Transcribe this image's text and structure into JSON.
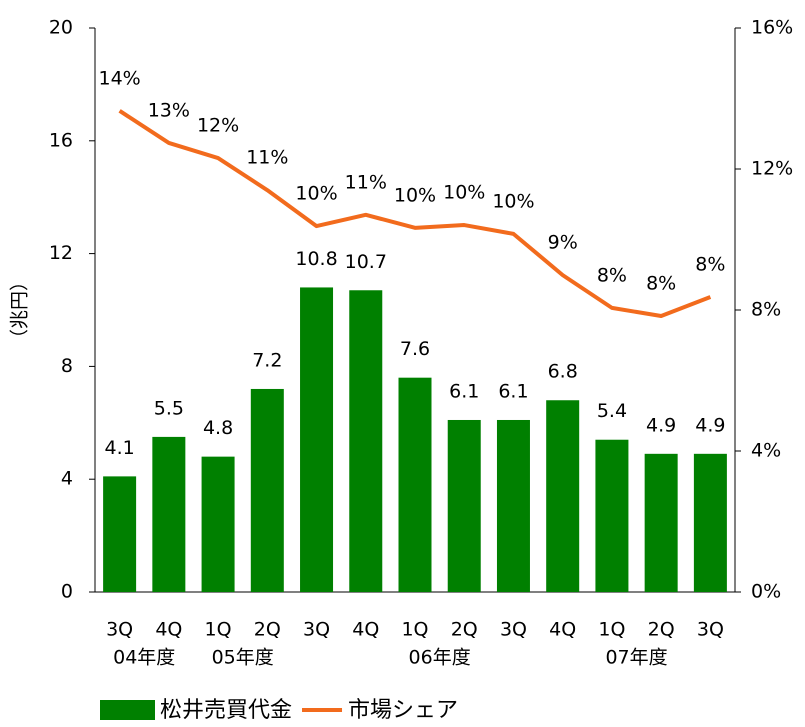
{
  "chart_data": {
    "type": "bar-line",
    "y_label": "（兆円）",
    "categories": [
      "3Q",
      "4Q",
      "1Q",
      "2Q",
      "3Q",
      "4Q",
      "1Q",
      "2Q",
      "3Q",
      "4Q",
      "1Q",
      "2Q",
      "3Q"
    ],
    "category_groups": [
      {
        "label": "04年度",
        "first": 0,
        "last": 1
      },
      {
        "label": "05年度",
        "first": 2,
        "last": 3
      },
      {
        "label": "06年度",
        "first": 6,
        "last": 7
      },
      {
        "label": "07年度",
        "first": 10,
        "last": 11
      }
    ],
    "series": [
      {
        "name": "松井売買代金",
        "type": "bar",
        "color": "#008000",
        "values": [
          4.1,
          5.5,
          4.8,
          7.2,
          10.8,
          10.7,
          7.6,
          6.1,
          6.1,
          6.8,
          5.4,
          4.9,
          4.9
        ]
      },
      {
        "name": "市場シェア",
        "type": "line",
        "axis": "y2",
        "color": "#f26b1d",
        "values": [
          13.65,
          12.74,
          12.31,
          11.4,
          10.38,
          10.7,
          10.33,
          10.41,
          10.16,
          8.99,
          8.06,
          7.83,
          8.37
        ],
        "value_labels": [
          "14%",
          "13%",
          "12%",
          "11%",
          "10%",
          "11%",
          "10%",
          "10%",
          "10%",
          "9%",
          "8%",
          "8%",
          "8%"
        ]
      }
    ],
    "ylim": [
      0,
      20
    ],
    "yticks": [
      0,
      4,
      8,
      12,
      16,
      20
    ],
    "y2lim": [
      0,
      16
    ],
    "y2ticks": [
      {
        "value": 0,
        "label": "0%"
      },
      {
        "value": 4,
        "label": "4%"
      },
      {
        "value": 8,
        "label": "8%"
      },
      {
        "value": 12,
        "label": "12%"
      },
      {
        "value": 16,
        "label": "16%"
      }
    ]
  }
}
